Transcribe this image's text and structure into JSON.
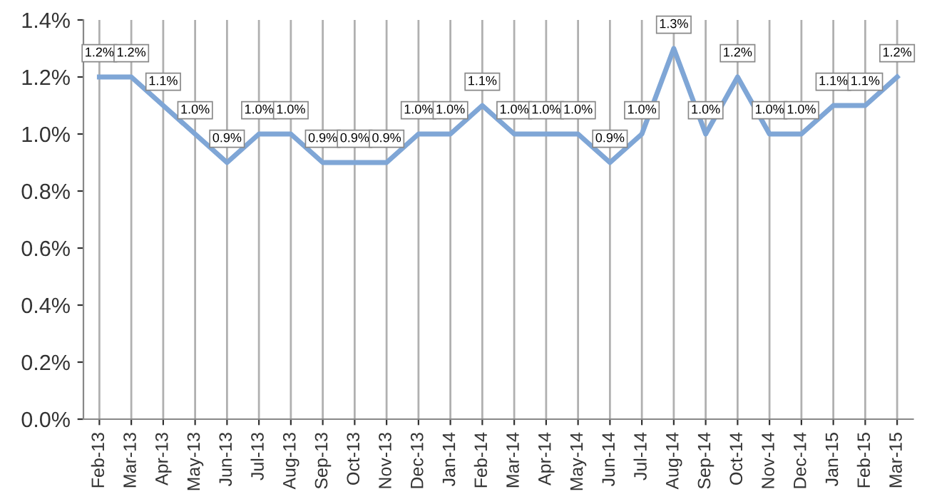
{
  "chart_data": {
    "type": "line",
    "categories": [
      "Feb-13",
      "Mar-13",
      "Apr-13",
      "May-13",
      "Jun-13",
      "Jul-13",
      "Aug-13",
      "Sep-13",
      "Oct-13",
      "Nov-13",
      "Dec-13",
      "Jan-14",
      "Feb-14",
      "Mar-14",
      "Apr-14",
      "May-14",
      "Jun-14",
      "Jul-14",
      "Aug-14",
      "Sep-14",
      "Oct-14",
      "Nov-14",
      "Dec-14",
      "Jan-15",
      "Feb-15",
      "Mar-15"
    ],
    "series": [
      {
        "color": "#7fa6d6",
        "values": [
          1.2,
          1.2,
          1.1,
          1.0,
          0.9,
          1.0,
          1.0,
          0.9,
          0.9,
          0.9,
          1.0,
          1.0,
          1.1,
          1.0,
          1.0,
          1.0,
          0.9,
          1.0,
          1.3,
          1.0,
          1.2,
          1.0,
          1.0,
          1.1,
          1.1,
          1.2
        ],
        "value_labels": [
          "1.2%",
          "1.2%",
          "1.1%",
          "1.0%",
          "0.9%",
          "1.0%",
          "1.0%",
          "0.9%",
          "0.9%",
          "0.9%",
          "1.0%",
          "1.0%",
          "1.1%",
          "1.0%",
          "1.0%",
          "1.0%",
          "0.9%",
          "1.0%",
          "1.3%",
          "1.0%",
          "1.2%",
          "1.0%",
          "1.0%",
          "1.1%",
          "1.1%",
          "1.2%"
        ]
      }
    ],
    "ylim": [
      0,
      1.4
    ],
    "yticks": [
      {
        "value": 0,
        "label": "0.0%"
      },
      {
        "value": 0.2,
        "label": "0.2%"
      },
      {
        "value": 0.4,
        "label": "0.4%"
      },
      {
        "value": 0.6,
        "label": "0.6%"
      },
      {
        "value": 0.8,
        "label": "0.8%"
      },
      {
        "value": 1.0,
        "label": "1.0%"
      },
      {
        "value": 1.2,
        "label": "1.2%"
      },
      {
        "value": 1.4,
        "label": "1.4%"
      }
    ],
    "grid": "x",
    "marker": "none",
    "line_style": "solid"
  }
}
